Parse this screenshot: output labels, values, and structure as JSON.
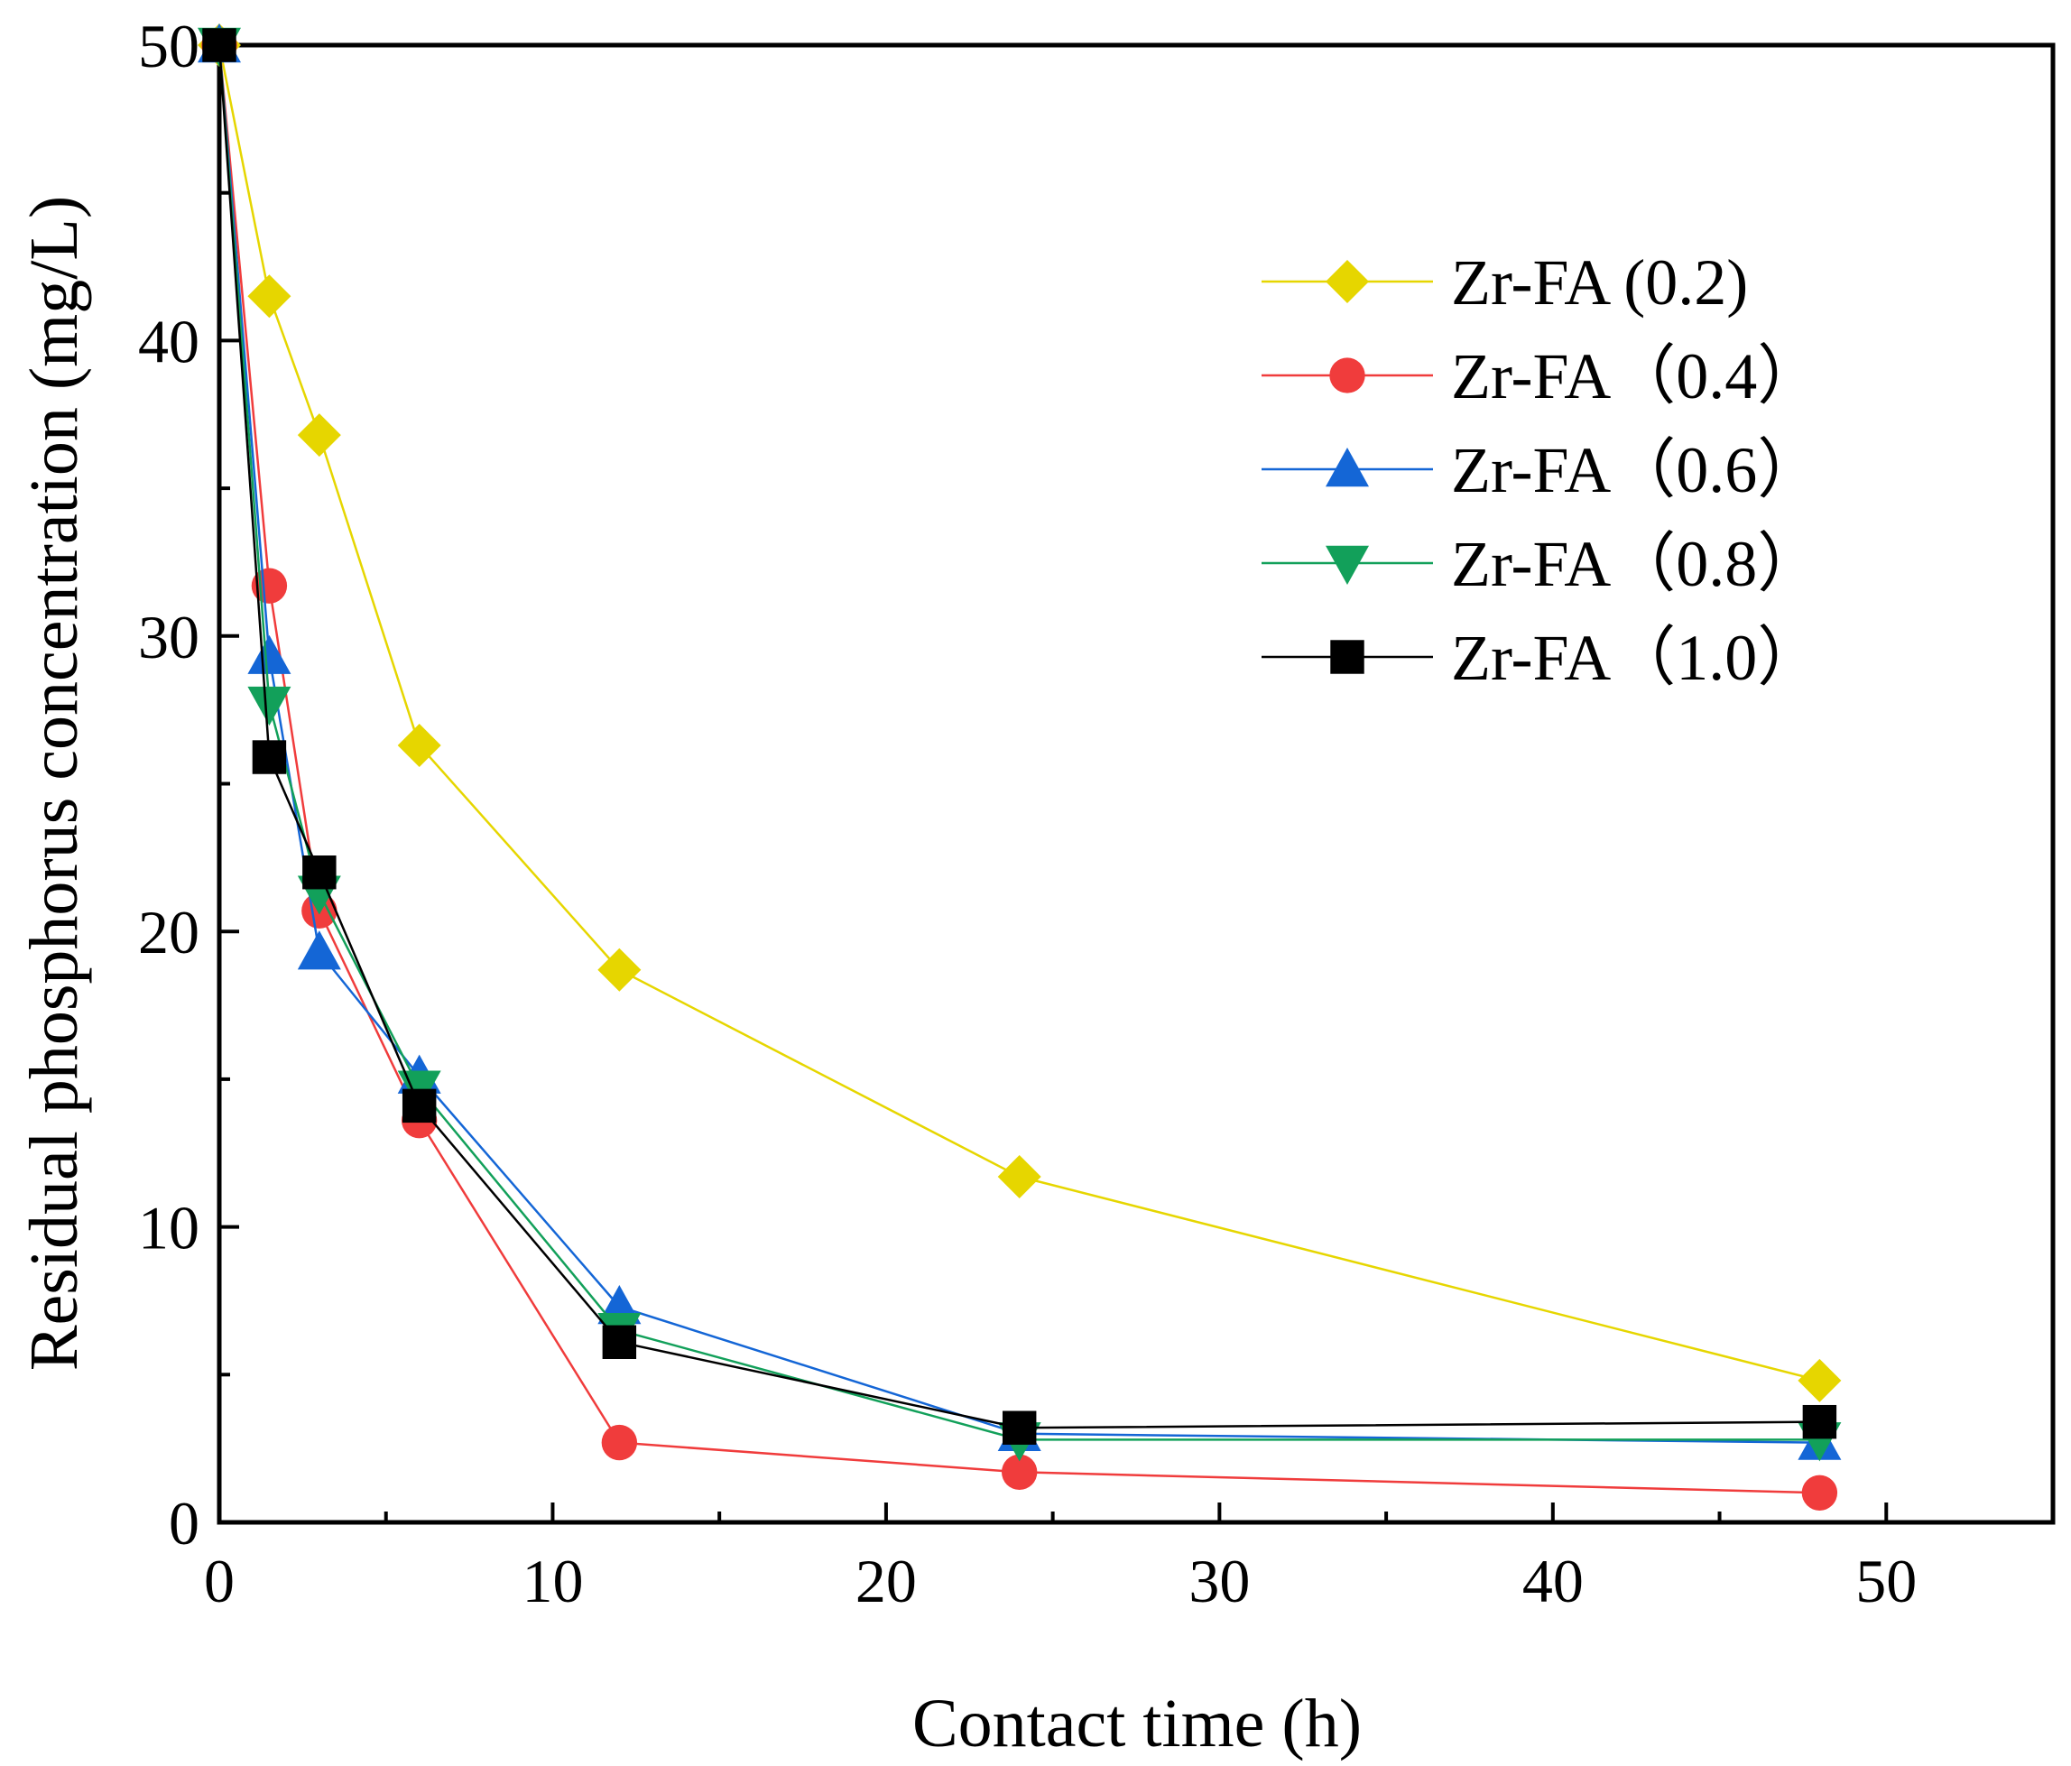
{
  "chart_data": {
    "type": "line",
    "xlabel": "Contact time (h)",
    "ylabel": "Residual phosphorus concentration (mg/L)",
    "xlim": [
      0,
      55
    ],
    "ylim": [
      0,
      50
    ],
    "x_ticks": [
      0,
      10,
      20,
      30,
      40,
      50
    ],
    "x_tick_labels": [
      "0",
      "10",
      "20",
      "30",
      "40",
      "50"
    ],
    "y_ticks": [
      0,
      10,
      20,
      30,
      40,
      50
    ],
    "y_tick_labels": [
      "0",
      "10",
      "20",
      "30",
      "40",
      "50"
    ],
    "grid": false,
    "legend_position": "top-right",
    "x": [
      0,
      1.5,
      3,
      6,
      12,
      24,
      48
    ],
    "series": [
      {
        "name": "Zr-FA (0.2)",
        "color": "#e6d600",
        "marker": "diamond",
        "values": [
          50,
          41.5,
          36.8,
          26.3,
          18.7,
          11.7,
          4.8
        ]
      },
      {
        "name": "Zr-FA（0.4）",
        "color": "#f03c3c",
        "marker": "circle",
        "values": [
          50,
          31.7,
          20.7,
          13.6,
          2.7,
          1.7,
          1.0
        ]
      },
      {
        "name": "Zr-FA（0.6）",
        "color": "#1466d6",
        "marker": "triangle-up",
        "values": [
          50,
          29.3,
          19.3,
          15.1,
          7.3,
          3.0,
          2.7
        ]
      },
      {
        "name": "Zr-FA（0.8）",
        "color": "#12a05a",
        "marker": "triangle-down",
        "values": [
          50,
          27.7,
          21.3,
          14.7,
          6.5,
          2.8,
          2.8
        ]
      },
      {
        "name": "Zr-FA（1.0）",
        "color": "#000000",
        "marker": "square",
        "values": [
          50,
          25.9,
          22.0,
          14.1,
          6.1,
          3.2,
          3.4
        ]
      }
    ]
  }
}
